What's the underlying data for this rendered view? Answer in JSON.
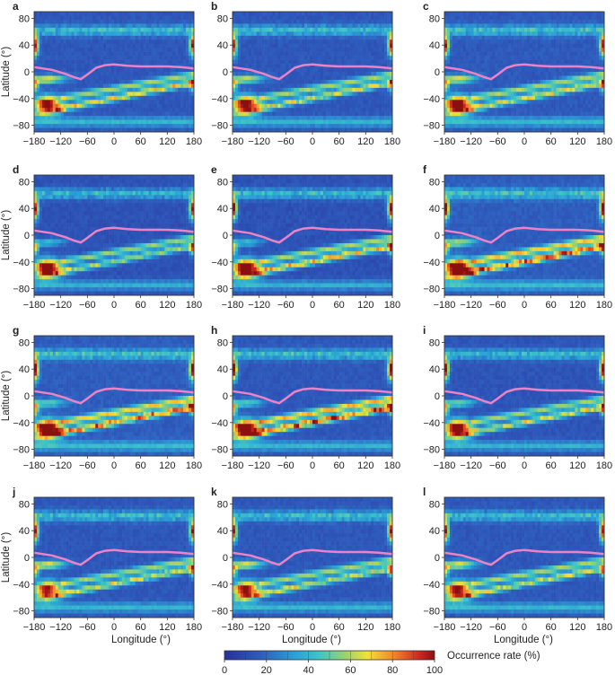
{
  "chart_data": {
    "type": "heatmap",
    "panel_count": 12,
    "panel_labels": [
      "a",
      "b",
      "c",
      "d",
      "e",
      "f",
      "g",
      "h",
      "i",
      "j",
      "k",
      "l"
    ],
    "xlabel": "Longitude (°)",
    "ylabel": "Latitude (°)",
    "xlim": [
      -180,
      180
    ],
    "ylim": [
      -90,
      90
    ],
    "xticks": [
      -180,
      -120,
      -60,
      0,
      60,
      120,
      180
    ],
    "yticks": [
      80,
      40,
      0,
      -40,
      -80
    ],
    "xtick_labels": [
      "−180",
      "−120",
      "−60",
      "0",
      "60",
      "120",
      "180"
    ],
    "ytick_labels": [
      "80",
      "40",
      "0",
      "−40",
      "−80"
    ],
    "colorbar": {
      "label": "Occurrence rate (%)",
      "min": 0,
      "max": 100,
      "ticks": [
        0,
        20,
        40,
        60,
        80,
        100
      ],
      "tick_labels": [
        "0",
        "20",
        "40",
        "60",
        "80",
        "100"
      ]
    },
    "overlay_line": {
      "color": "#ee82c6",
      "points": [
        [
          -180,
          7
        ],
        [
          -140,
          3
        ],
        [
          -110,
          -3
        ],
        [
          -90,
          -8
        ],
        [
          -75,
          -11
        ],
        [
          -60,
          -4
        ],
        [
          -40,
          6
        ],
        [
          -20,
          10
        ],
        [
          0,
          11
        ],
        [
          30,
          9
        ],
        [
          60,
          8
        ],
        [
          90,
          8
        ],
        [
          120,
          8
        ],
        [
          150,
          7
        ],
        [
          180,
          5
        ]
      ]
    },
    "panels": [
      {
        "label": "a",
        "s_hot": 0.85,
        "s_band1": 0.65,
        "s_band2": 0.55,
        "s_edge": 0.85,
        "s_eq": 0.55,
        "s_bg": 0.12
      },
      {
        "label": "b",
        "s_hot": 0.9,
        "s_band1": 0.6,
        "s_band2": 0.55,
        "s_edge": 0.85,
        "s_eq": 0.5,
        "s_bg": 0.12
      },
      {
        "label": "c",
        "s_hot": 0.92,
        "s_band1": 0.65,
        "s_band2": 0.55,
        "s_edge": 0.85,
        "s_eq": 0.55,
        "s_bg": 0.13
      },
      {
        "label": "d",
        "s_hot": 1.0,
        "s_band1": 0.55,
        "s_band2": 0.55,
        "s_edge": 0.9,
        "s_eq": 0.3,
        "s_bg": 0.1
      },
      {
        "label": "e",
        "s_hot": 1.0,
        "s_band1": 0.75,
        "s_band2": 0.6,
        "s_edge": 0.95,
        "s_eq": 0.3,
        "s_bg": 0.1
      },
      {
        "label": "f",
        "s_hot": 1.0,
        "s_band1": 0.85,
        "s_band2": 0.7,
        "s_edge": 0.95,
        "s_eq": 0.45,
        "s_bg": 0.14
      },
      {
        "label": "g",
        "s_hot": 1.0,
        "s_band1": 0.8,
        "s_band2": 0.7,
        "s_edge": 0.95,
        "s_eq": 0.35,
        "s_bg": 0.14
      },
      {
        "label": "h",
        "s_hot": 1.0,
        "s_band1": 0.9,
        "s_band2": 0.75,
        "s_edge": 1.0,
        "s_eq": 0.35,
        "s_bg": 0.12
      },
      {
        "label": "i",
        "s_hot": 0.95,
        "s_band1": 0.6,
        "s_band2": 0.55,
        "s_edge": 0.95,
        "s_eq": 0.4,
        "s_bg": 0.11
      },
      {
        "label": "j",
        "s_hot": 0.8,
        "s_band1": 0.6,
        "s_band2": 0.55,
        "s_edge": 0.85,
        "s_eq": 0.55,
        "s_bg": 0.12
      },
      {
        "label": "k",
        "s_hot": 0.85,
        "s_band1": 0.6,
        "s_band2": 0.55,
        "s_edge": 0.85,
        "s_eq": 0.55,
        "s_bg": 0.12
      },
      {
        "label": "l",
        "s_hot": 0.85,
        "s_band1": 0.6,
        "s_band2": 0.55,
        "s_edge": 0.85,
        "s_eq": 0.55,
        "s_bg": 0.12
      }
    ]
  }
}
